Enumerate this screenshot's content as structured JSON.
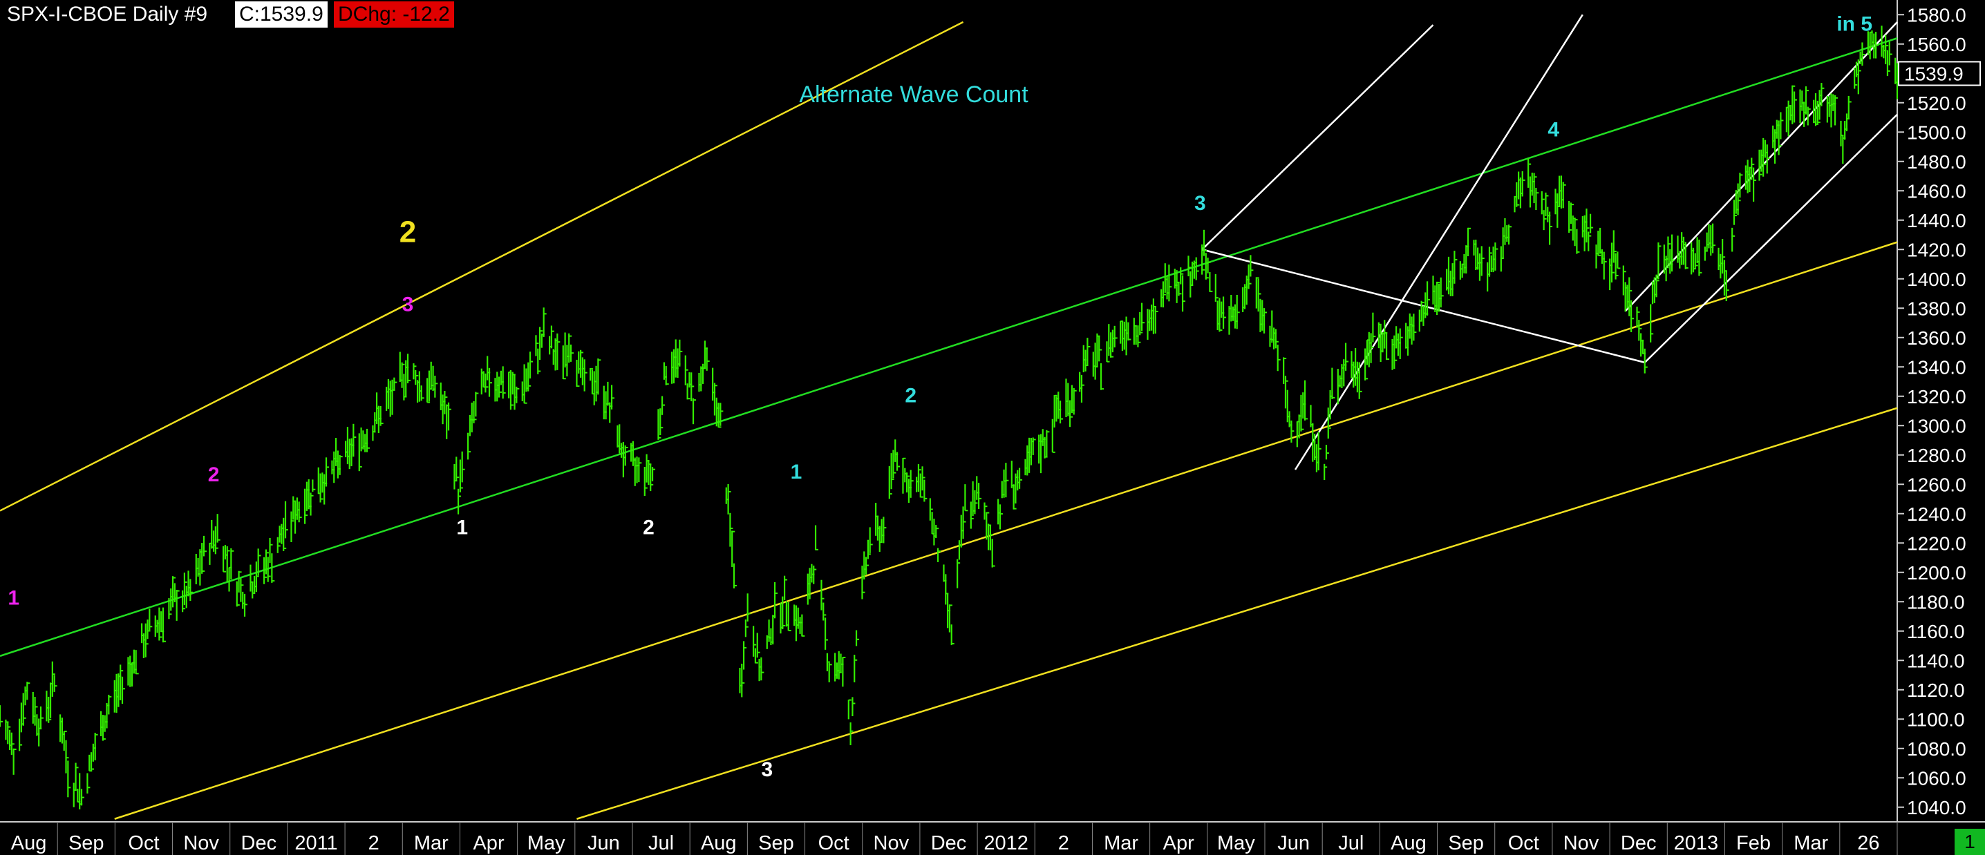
{
  "header": {
    "symbol": "SPX-I-CBOE  Daily  #9",
    "close": "C:1539.9",
    "change": "DChg: -12.2"
  },
  "page_number": "1",
  "colors": {
    "background": "#000000",
    "price": "#33ee00",
    "green_channel": "#22dd22",
    "yellow_channel": "#f0e020",
    "white_lines": "#ffffff",
    "magenta_labels": "#ee22ee",
    "cyan_labels": "#33dddd",
    "white_labels": "#ffffff",
    "yellow_label": "#ffee00",
    "last_price_box": "#ffffff"
  },
  "chart_data": {
    "type": "line",
    "subtype": "daily high-low bars",
    "series": [],
    "annotation": "Alternate Wave Count",
    "x_axis": {
      "labels": [
        "Aug",
        "Sep",
        "Oct",
        "Nov",
        "Dec",
        "2011",
        "2",
        "Mar",
        "Apr",
        "May",
        "Jun",
        "Jul",
        "Aug",
        "Sep",
        "Oct",
        "Nov",
        "Dec",
        "2012",
        "2",
        "Mar",
        "Apr",
        "May",
        "Jun",
        "Jul",
        "Aug",
        "Sep",
        "Oct",
        "Nov",
        "Dec",
        "2013",
        "Feb",
        "Mar",
        "26"
      ],
      "range": [
        "2010-07-23",
        "2013-03-26"
      ]
    },
    "y_axis": {
      "range": [
        1030,
        1590
      ],
      "ticks": [
        1040.0,
        1060.0,
        1080.0,
        1100.0,
        1120.0,
        1140.0,
        1160.0,
        1180.0,
        1200.0,
        1220.0,
        1240.0,
        1260.0,
        1280.0,
        1300.0,
        1320.0,
        1340.0,
        1360.0,
        1380.0,
        1400.0,
        1420.0,
        1440.0,
        1460.0,
        1480.0,
        1500.0,
        1520.0,
        1540.0,
        1560.0,
        1580.0
      ],
      "position": "right"
    },
    "last_price": "1539.9",
    "price_path": [
      [
        "2010-07-23",
        1100
      ],
      [
        "2010-07-30",
        1080
      ],
      [
        "2010-08-06",
        1120
      ],
      [
        "2010-08-13",
        1095
      ],
      [
        "2010-08-20",
        1125
      ],
      [
        "2010-08-27",
        1065
      ],
      [
        "2010-09-03",
        1048
      ],
      [
        "2010-09-10",
        1080
      ],
      [
        "2010-09-17",
        1108
      ],
      [
        "2010-09-24",
        1125
      ],
      [
        "2010-10-01",
        1142
      ],
      [
        "2010-10-08",
        1160
      ],
      [
        "2010-10-15",
        1170
      ],
      [
        "2010-10-22",
        1182
      ],
      [
        "2010-10-29",
        1185
      ],
      [
        "2010-11-05",
        1212
      ],
      [
        "2010-11-12",
        1228
      ],
      [
        "2010-11-19",
        1200
      ],
      [
        "2010-11-26",
        1185
      ],
      [
        "2010-12-03",
        1200
      ],
      [
        "2010-12-10",
        1210
      ],
      [
        "2010-12-17",
        1230
      ],
      [
        "2010-12-24",
        1245
      ],
      [
        "2010-12-31",
        1257
      ],
      [
        "2011-01-07",
        1265
      ],
      [
        "2011-01-14",
        1275
      ],
      [
        "2011-01-21",
        1285
      ],
      [
        "2011-01-28",
        1295
      ],
      [
        "2011-02-04",
        1308
      ],
      [
        "2011-02-11",
        1322
      ],
      [
        "2011-02-18",
        1340
      ],
      [
        "2011-02-25",
        1325
      ],
      [
        "2011-03-04",
        1330
      ],
      [
        "2011-03-11",
        1300
      ],
      [
        "2011-03-16",
        1255
      ],
      [
        "2011-03-25",
        1315
      ],
      [
        "2011-04-01",
        1332
      ],
      [
        "2011-04-08",
        1330
      ],
      [
        "2011-04-15",
        1320
      ],
      [
        "2011-04-22",
        1335
      ],
      [
        "2011-04-29",
        1363
      ],
      [
        "2011-05-06",
        1345
      ],
      [
        "2011-05-13",
        1355
      ],
      [
        "2011-05-20",
        1330
      ],
      [
        "2011-05-27",
        1330
      ],
      [
        "2011-06-03",
        1310
      ],
      [
        "2011-06-10",
        1275
      ],
      [
        "2011-06-17",
        1270
      ],
      [
        "2011-06-24",
        1268
      ],
      [
        "2011-07-01",
        1340
      ],
      [
        "2011-07-08",
        1345
      ],
      [
        "2011-07-15",
        1318
      ],
      [
        "2011-07-22",
        1345
      ],
      [
        "2011-07-29",
        1300
      ],
      [
        "2011-08-05",
        1200
      ],
      [
        "2011-08-08",
        1120
      ],
      [
        "2011-08-12",
        1175
      ],
      [
        "2011-08-19",
        1130
      ],
      [
        "2011-08-26",
        1175
      ],
      [
        "2011-09-02",
        1180
      ],
      [
        "2011-09-09",
        1160
      ],
      [
        "2011-09-16",
        1215
      ],
      [
        "2011-09-23",
        1135
      ],
      [
        "2011-09-30",
        1135
      ],
      [
        "2011-10-04",
        1090
      ],
      [
        "2011-10-07",
        1160
      ],
      [
        "2011-10-14",
        1225
      ],
      [
        "2011-10-21",
        1230
      ],
      [
        "2011-10-27",
        1285
      ],
      [
        "2011-11-04",
        1255
      ],
      [
        "2011-11-11",
        1262
      ],
      [
        "2011-11-18",
        1215
      ],
      [
        "2011-11-25",
        1160
      ],
      [
        "2011-12-02",
        1245
      ],
      [
        "2011-12-09",
        1250
      ],
      [
        "2011-12-16",
        1220
      ],
      [
        "2011-12-23",
        1265
      ],
      [
        "2011-12-30",
        1258
      ],
      [
        "2012-01-06",
        1280
      ],
      [
        "2012-01-13",
        1290
      ],
      [
        "2012-01-20",
        1315
      ],
      [
        "2012-01-27",
        1318
      ],
      [
        "2012-02-03",
        1345
      ],
      [
        "2012-02-10",
        1343
      ],
      [
        "2012-02-17",
        1362
      ],
      [
        "2012-02-24",
        1367
      ],
      [
        "2012-03-02",
        1370
      ],
      [
        "2012-03-09",
        1370
      ],
      [
        "2012-03-16",
        1405
      ],
      [
        "2012-03-23",
        1398
      ],
      [
        "2012-03-30",
        1408
      ],
      [
        "2012-04-02",
        1420
      ],
      [
        "2012-04-06",
        1398
      ],
      [
        "2012-04-13",
        1370
      ],
      [
        "2012-04-20",
        1378
      ],
      [
        "2012-04-27",
        1403
      ],
      [
        "2012-05-04",
        1370
      ],
      [
        "2012-05-11",
        1353
      ],
      [
        "2012-05-18",
        1295
      ],
      [
        "2012-05-25",
        1318
      ],
      [
        "2012-06-01",
        1278
      ],
      [
        "2012-06-04",
        1268
      ],
      [
        "2012-06-08",
        1325
      ],
      [
        "2012-06-15",
        1342
      ],
      [
        "2012-06-22",
        1335
      ],
      [
        "2012-06-29",
        1362
      ],
      [
        "2012-07-06",
        1355
      ],
      [
        "2012-07-13",
        1357
      ],
      [
        "2012-07-20",
        1362
      ],
      [
        "2012-07-27",
        1385
      ],
      [
        "2012-08-03",
        1390
      ],
      [
        "2012-08-10",
        1405
      ],
      [
        "2012-08-17",
        1418
      ],
      [
        "2012-08-24",
        1411
      ],
      [
        "2012-08-31",
        1406
      ],
      [
        "2012-09-07",
        1438
      ],
      [
        "2012-09-14",
        1465
      ],
      [
        "2012-09-21",
        1460
      ],
      [
        "2012-09-28",
        1440
      ],
      [
        "2012-10-05",
        1460
      ],
      [
        "2012-10-12",
        1428
      ],
      [
        "2012-10-19",
        1433
      ],
      [
        "2012-10-26",
        1412
      ],
      [
        "2012-11-02",
        1414
      ],
      [
        "2012-11-09",
        1380
      ],
      [
        "2012-11-16",
        1353
      ],
      [
        "2012-11-23",
        1409
      ],
      [
        "2012-11-30",
        1416
      ],
      [
        "2012-12-07",
        1418
      ],
      [
        "2012-12-14",
        1413
      ],
      [
        "2012-12-21",
        1430
      ],
      [
        "2012-12-28",
        1402
      ],
      [
        "2013-01-04",
        1466
      ],
      [
        "2013-01-11",
        1472
      ],
      [
        "2013-01-18",
        1485
      ],
      [
        "2013-01-25",
        1502
      ],
      [
        "2013-02-01",
        1513
      ],
      [
        "2013-02-08",
        1517
      ],
      [
        "2013-02-15",
        1520
      ],
      [
        "2013-02-22",
        1515
      ],
      [
        "2013-02-26",
        1488
      ],
      [
        "2013-03-01",
        1518
      ],
      [
        "2013-03-08",
        1551
      ],
      [
        "2013-03-15",
        1560
      ],
      [
        "2013-03-22",
        1556
      ],
      [
        "2013-03-26",
        1540
      ]
    ],
    "trend_lines": [
      {
        "color": "yellow",
        "from": [
          "2010-07-23",
          1242
        ],
        "to": [
          "2011-12-01",
          1575
        ]
      },
      {
        "color": "green",
        "from": [
          "2010-07-23",
          1143
        ],
        "to": [
          "2013-03-26",
          1564
        ]
      },
      {
        "color": "yellow",
        "from": [
          "2010-09-20",
          1032
        ],
        "to": [
          "2013-03-26",
          1425
        ]
      },
      {
        "color": "yellow",
        "from": [
          "2011-05-16",
          1032
        ],
        "to": [
          "2013-03-26",
          1312
        ]
      },
      {
        "color": "white",
        "from": [
          "2012-04-02",
          1420
        ],
        "to": [
          "2012-11-16",
          1343
        ]
      },
      {
        "color": "white",
        "from": [
          "2012-04-02",
          1420
        ],
        "to": [
          "2012-07-30",
          1573
        ]
      },
      {
        "color": "white",
        "from": [
          "2012-05-20",
          1270
        ],
        "to": [
          "2012-10-15",
          1580
        ]
      },
      {
        "color": "white",
        "from": [
          "2012-11-16",
          1343
        ],
        "to": [
          "2013-03-26",
          1512
        ]
      },
      {
        "color": "white",
        "from": [
          "2012-11-06",
          1378
        ],
        "to": [
          "2013-03-26",
          1575
        ]
      }
    ],
    "wave_labels": [
      {
        "text": "1",
        "color": "magenta",
        "at": [
          "2010-07-30",
          1178
        ]
      },
      {
        "text": "2",
        "color": "magenta",
        "at": [
          "2010-11-10",
          1262
        ]
      },
      {
        "text": "3",
        "color": "magenta",
        "at": [
          "2011-02-18",
          1378
        ]
      },
      {
        "text": "2",
        "color": "yellow",
        "at": [
          "2011-02-18",
          1425
        ],
        "large": true
      },
      {
        "text": "1",
        "color": "white",
        "at": [
          "2011-03-18",
          1226
        ]
      },
      {
        "text": "2",
        "color": "white",
        "at": [
          "2011-06-22",
          1226
        ]
      },
      {
        "text": "3",
        "color": "white",
        "at": [
          "2011-08-22",
          1061
        ]
      },
      {
        "text": "1",
        "color": "cyan",
        "at": [
          "2011-09-06",
          1264
        ]
      },
      {
        "text": "2",
        "color": "cyan",
        "at": [
          "2011-11-04",
          1316
        ]
      },
      {
        "text": "3",
        "color": "cyan",
        "at": [
          "2012-04-01",
          1447
        ]
      },
      {
        "text": "4",
        "color": "cyan",
        "at": [
          "2012-09-30",
          1497
        ]
      },
      {
        "text": "in 5",
        "color": "cyan",
        "at": [
          "2013-03-04",
          1569
        ]
      }
    ]
  }
}
